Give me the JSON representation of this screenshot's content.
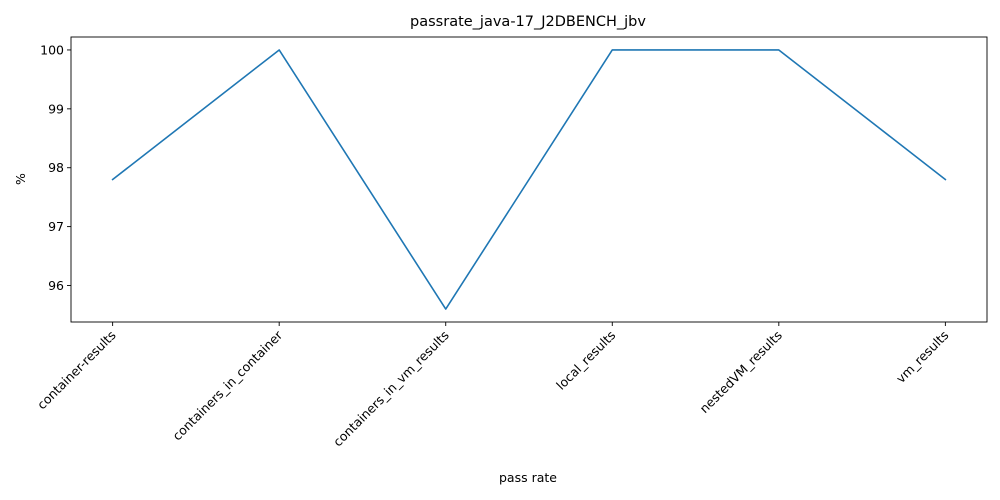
{
  "chart_data": {
    "type": "line",
    "title": "passrate_java-17_J2DBENCH_jbv",
    "xlabel": "pass rate",
    "ylabel": "%",
    "categories": [
      "container-results",
      "containers_in_container",
      "containers_in_vm_results",
      "local_results",
      "nestedVM_results",
      "vm_results"
    ],
    "series": [
      {
        "values": [
          97.8,
          100.0,
          95.6,
          100.0,
          100.0,
          97.8
        ],
        "color": "#1f77b4"
      }
    ],
    "yticks": [
      96,
      97,
      98,
      99,
      100
    ],
    "ylim": [
      95.38,
      100.22
    ],
    "grid": false,
    "legend": "none",
    "x_tick_rotation_deg": 45
  }
}
